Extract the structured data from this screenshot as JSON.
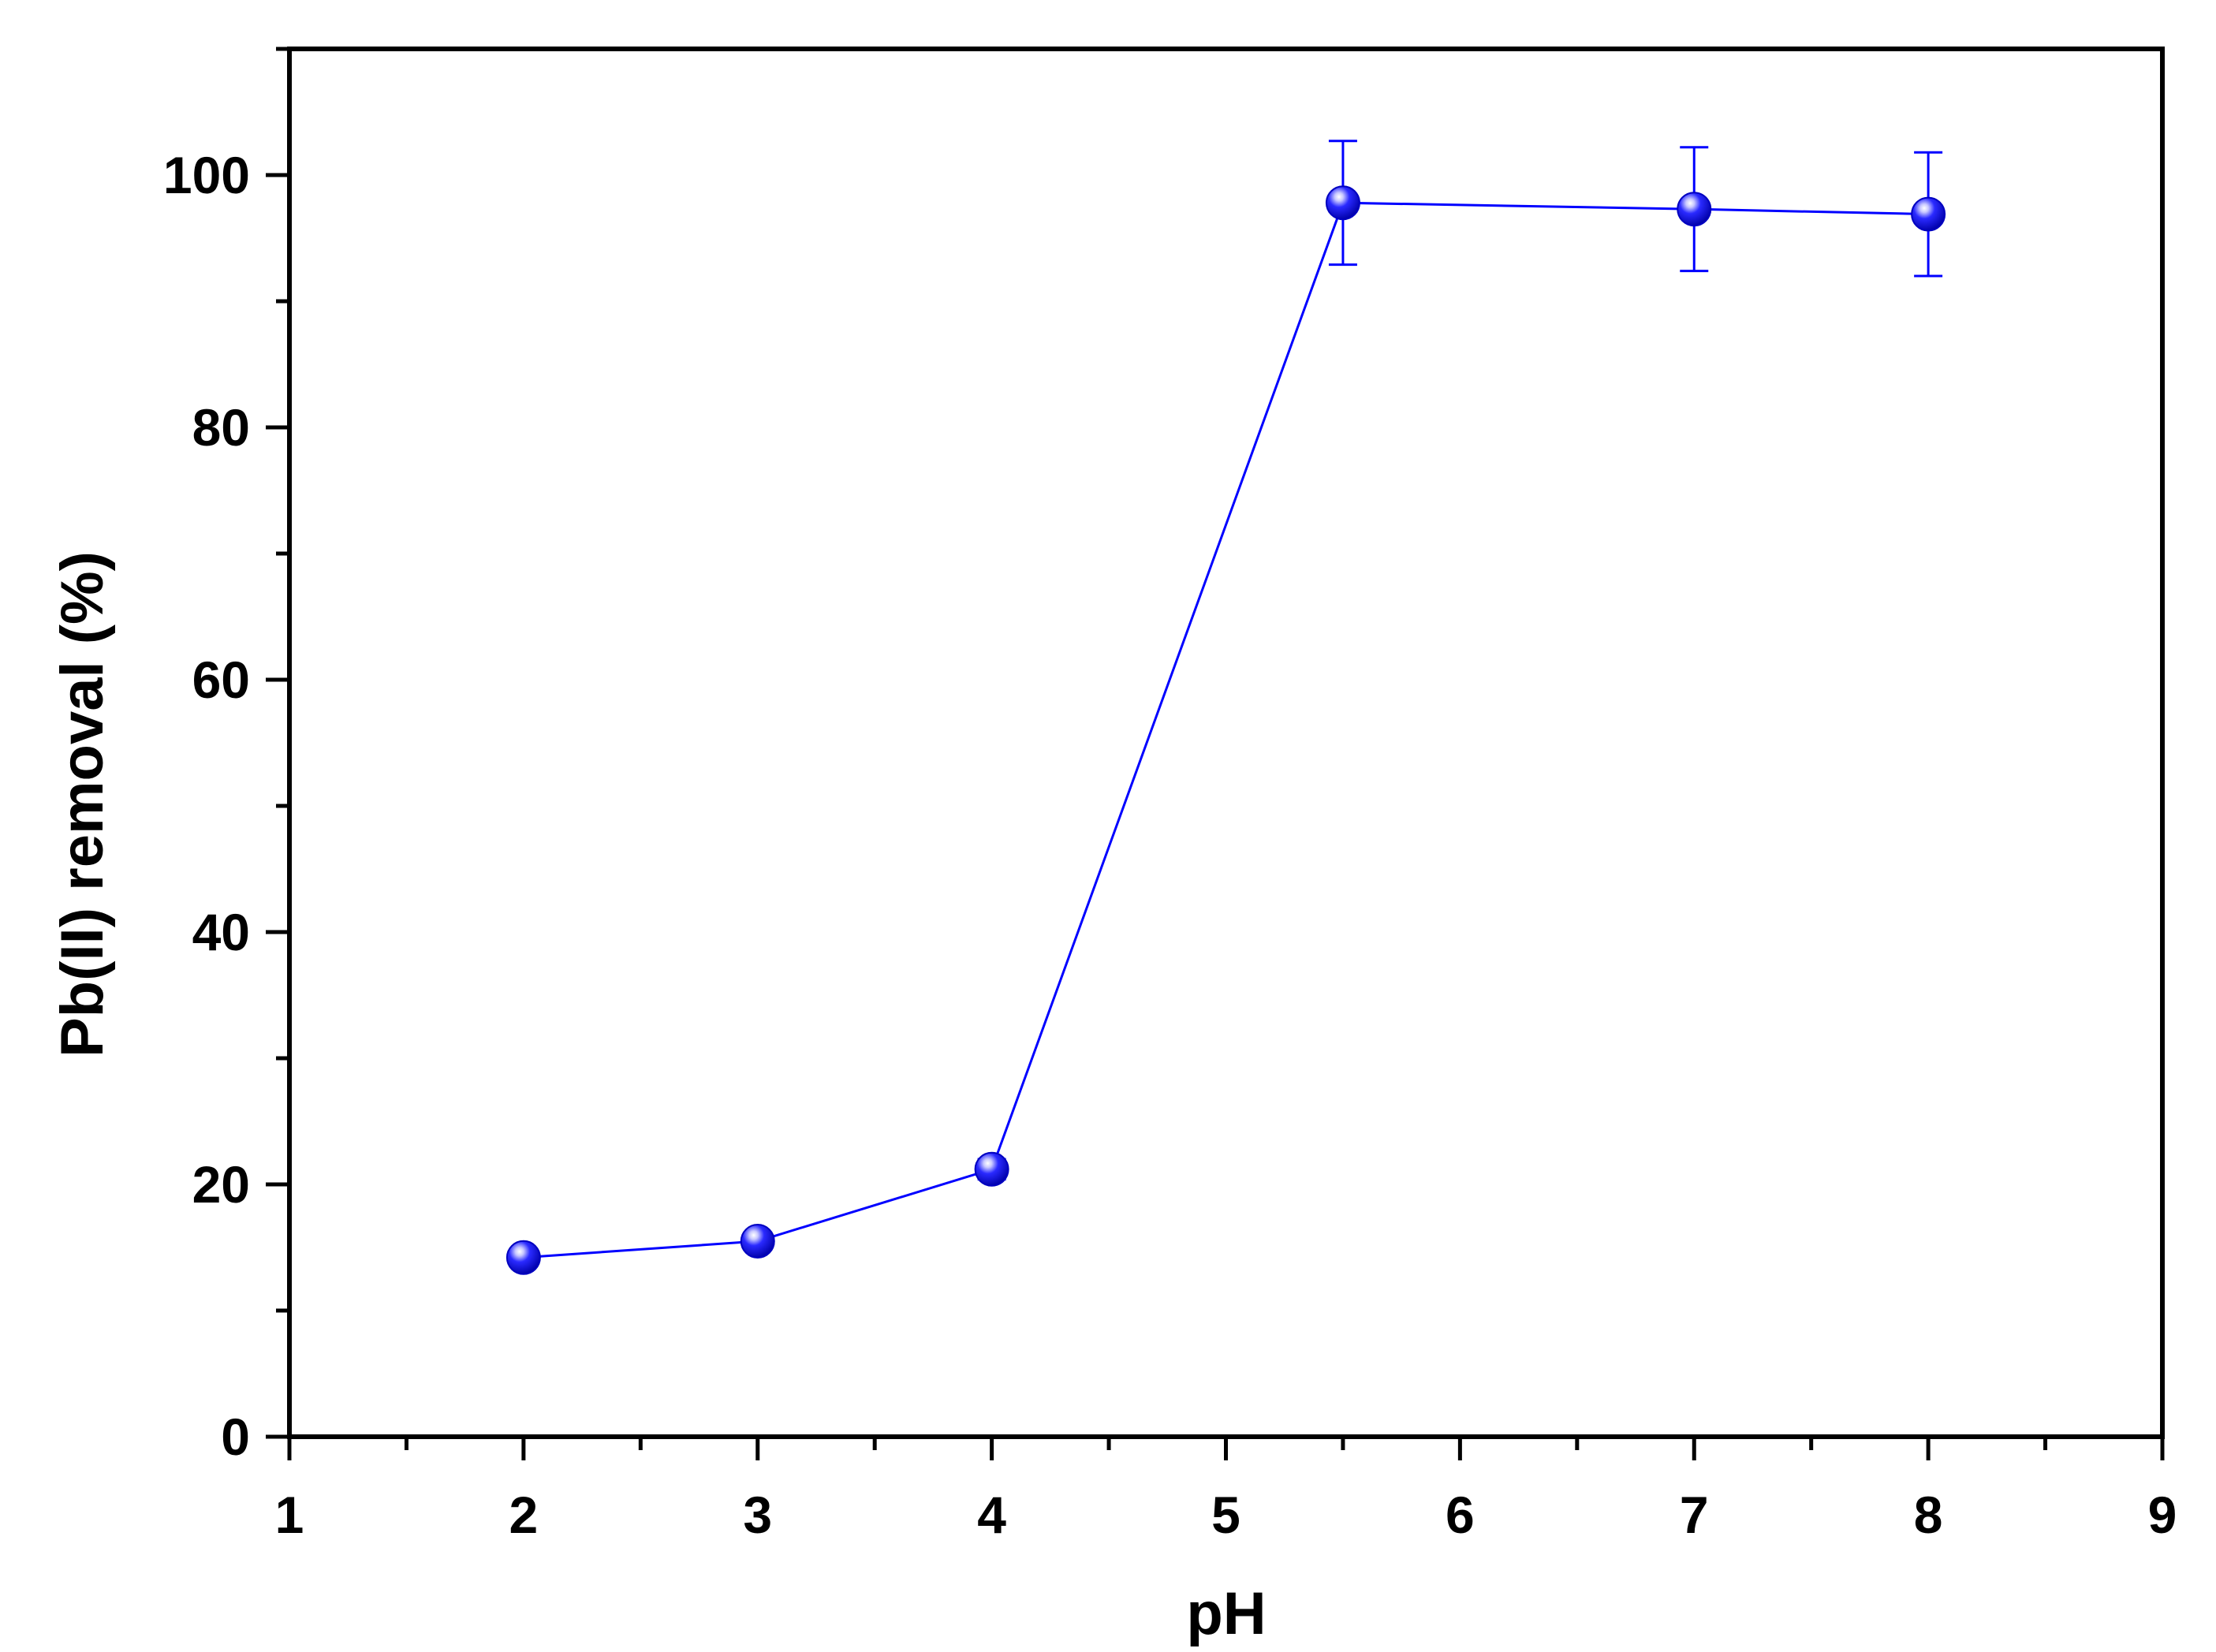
{
  "chart_data": {
    "type": "line",
    "title": "",
    "xlabel": "pH",
    "ylabel": "Pb(II) removal (%)",
    "xlim": [
      1,
      9
    ],
    "ylim": [
      0,
      110
    ],
    "x_ticks": [
      1,
      2,
      3,
      4,
      5,
      6,
      7,
      8,
      9
    ],
    "y_ticks": [
      0,
      20,
      40,
      60,
      80,
      100
    ],
    "x_tick_labels": [
      "1",
      "2",
      "3",
      "4",
      "5",
      "6",
      "7",
      "8",
      "9"
    ],
    "y_tick_labels": [
      "0",
      "20",
      "40",
      "60",
      "80",
      "100"
    ],
    "grid": false,
    "legend": "none",
    "series": [
      {
        "color": "#0000ff",
        "marker": "sphere",
        "x": [
          2,
          3,
          4,
          5.5,
          7,
          8
        ],
        "y": [
          14.2,
          15.5,
          21.2,
          97.8,
          97.3,
          96.9
        ],
        "error": [
          0.6,
          0.6,
          0.8,
          4.9,
          4.9,
          4.9
        ]
      }
    ]
  }
}
